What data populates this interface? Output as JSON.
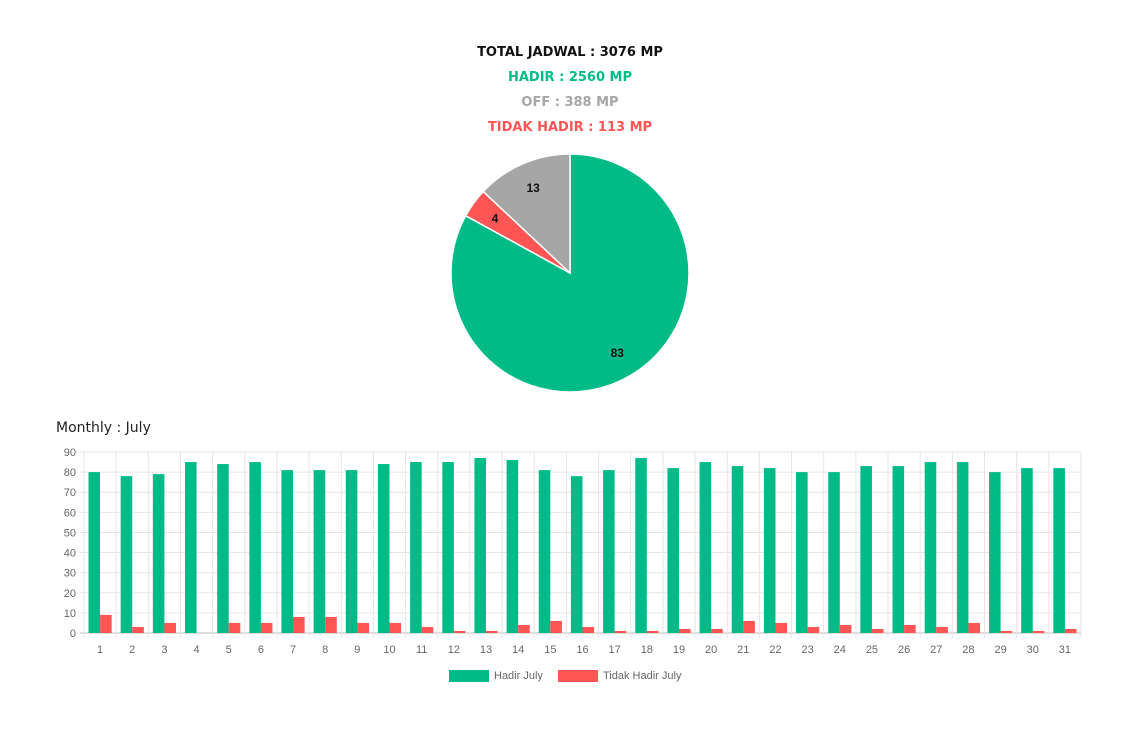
{
  "summary": {
    "total": "TOTAL JADWAL : 3076 MP",
    "hadir": "HADIR : 2560 MP",
    "off": "OFF : 388 MP",
    "tidak_hadir": "TIDAK HADIR : 113 MP"
  },
  "colors": {
    "hadir": "#00bb88",
    "off": "#a6a6a6",
    "tidak_hadir": "#ff5555"
  },
  "monthly": {
    "title": "Monthly : July"
  },
  "chart_data": [
    {
      "type": "pie",
      "slices": [
        {
          "label": "Hadir",
          "value": 83,
          "color": "#00bb88"
        },
        {
          "label": "Tidak Hadir",
          "value": 4,
          "color": "#ff5555"
        },
        {
          "label": "Off",
          "value": 13,
          "color": "#a6a6a6"
        }
      ]
    },
    {
      "type": "bar",
      "title": "Monthly : July",
      "categories": [
        "1",
        "2",
        "3",
        "4",
        "5",
        "6",
        "7",
        "8",
        "9",
        "10",
        "11",
        "12",
        "13",
        "14",
        "15",
        "16",
        "17",
        "18",
        "19",
        "20",
        "21",
        "22",
        "23",
        "24",
        "25",
        "26",
        "27",
        "28",
        "29",
        "30",
        "31"
      ],
      "series": [
        {
          "name": "Hadir July",
          "color": "#00bb88",
          "values": [
            80,
            78,
            79,
            85,
            84,
            85,
            81,
            81,
            81,
            84,
            85,
            85,
            87,
            86,
            81,
            78,
            81,
            87,
            82,
            85,
            83,
            82,
            80,
            80,
            83,
            83,
            85,
            85,
            80,
            82,
            82
          ]
        },
        {
          "name": "Tidak Hadir July",
          "color": "#ff5555",
          "values": [
            9,
            3,
            5,
            0,
            5,
            5,
            8,
            8,
            5,
            5,
            3,
            1,
            1,
            4,
            6,
            3,
            1,
            1,
            2,
            2,
            6,
            5,
            3,
            4,
            2,
            4,
            3,
            5,
            1,
            1,
            2
          ]
        }
      ],
      "ylim": [
        0,
        90
      ],
      "yticks": [
        0,
        10,
        20,
        30,
        40,
        50,
        60,
        70,
        80,
        90
      ],
      "grid": true,
      "legend_position": "bottom"
    }
  ]
}
